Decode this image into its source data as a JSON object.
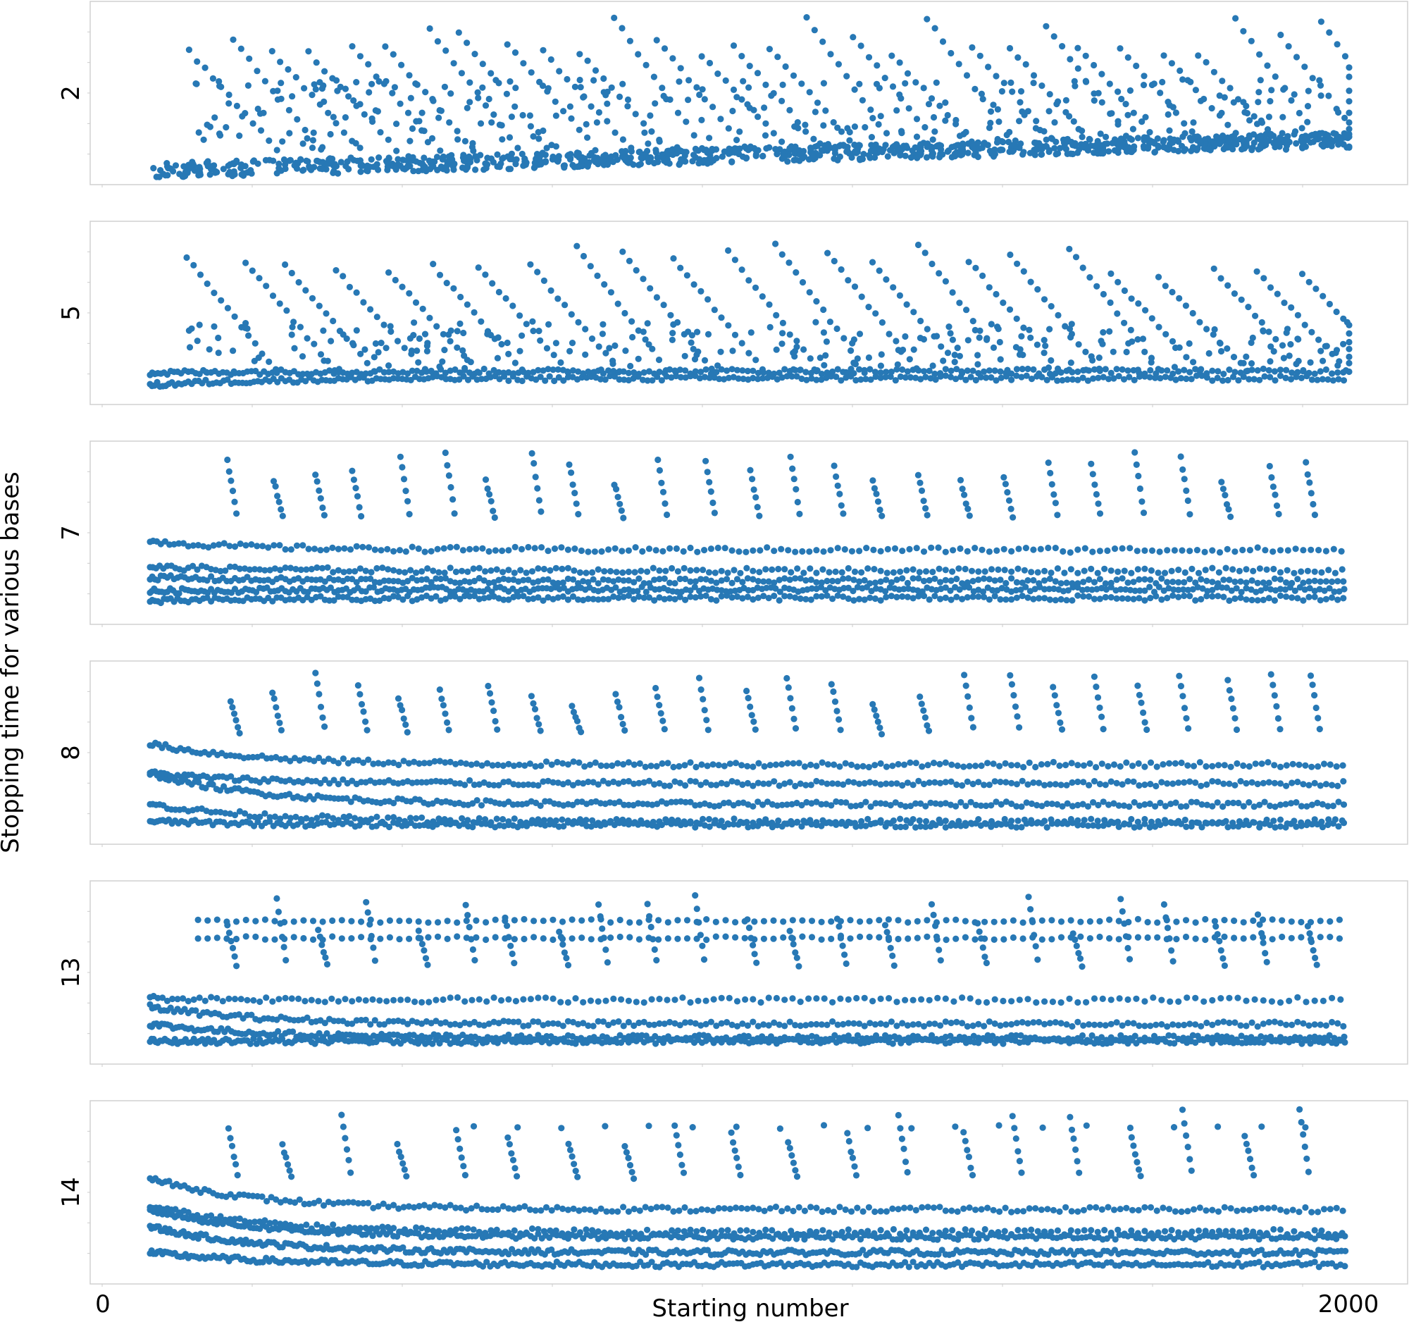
{
  "figure": {
    "ylabel": "Stopping time for various bases",
    "xlabel": "Starting number",
    "x_tick_labels": [
      "0",
      "2000"
    ],
    "marker_color": "#2778b5"
  },
  "chart_data": [
    {
      "type": "scatter",
      "panel_label": "2",
      "xlim": [
        0,
        2000
      ],
      "bands": [
        {
          "type": "low_cluster",
          "y_start": 0.04,
          "y_end": 0.22,
          "spread": 0.09,
          "n": 900
        },
        {
          "type": "fan",
          "y_top": 0.95,
          "y_base": 0.54,
          "count": 30,
          "lines": 8,
          "n": 380
        },
        {
          "type": "mid_cluster",
          "y_center": 0.38,
          "spread": 0.2,
          "n": 260
        }
      ]
    },
    {
      "type": "scatter",
      "panel_label": "5",
      "xlim": [
        0,
        2000
      ],
      "bands": [
        {
          "type": "curve",
          "y_start": 0.08,
          "y_end": 0.12,
          "n": 260
        },
        {
          "type": "curve",
          "y_start": 0.15,
          "y_end": 0.16,
          "n": 240
        },
        {
          "type": "fan",
          "y_top": 0.96,
          "y_base": 0.5,
          "count": 24,
          "lines": 7,
          "n": 340
        },
        {
          "type": "mid_cluster",
          "y_center": 0.3,
          "spread": 0.15,
          "n": 220
        }
      ]
    },
    {
      "type": "scatter",
      "panel_label": "7",
      "xlim": [
        0,
        2000
      ],
      "bands": [
        {
          "type": "curve",
          "y_start": 0.1,
          "y_end": 0.12,
          "n": 240
        },
        {
          "type": "curve",
          "y_start": 0.16,
          "y_end": 0.17,
          "n": 280
        },
        {
          "type": "curve",
          "y_start": 0.24,
          "y_end": 0.22,
          "n": 240
        },
        {
          "type": "curve",
          "y_start": 0.3,
          "y_end": 0.28,
          "n": 200
        },
        {
          "type": "curve",
          "y_start": 0.45,
          "y_end": 0.4,
          "n": 180
        },
        {
          "type": "spikes",
          "y_top": 0.97,
          "y_base": 0.55,
          "count": 26,
          "n": 160
        }
      ]
    },
    {
      "type": "scatter",
      "panel_label": "8",
      "xlim": [
        0,
        2000
      ],
      "bands": [
        {
          "type": "curve",
          "y_start": 0.1,
          "y_end": 0.08,
          "n": 260
        },
        {
          "type": "curve",
          "y_start": 0.2,
          "y_end": 0.1,
          "n": 200
        },
        {
          "type": "curve",
          "y_start": 0.38,
          "y_end": 0.2,
          "n": 260
        },
        {
          "type": "curve",
          "y_start": 0.38,
          "y_end": 0.32,
          "n": 240
        },
        {
          "type": "curve",
          "y_start": 0.55,
          "y_end": 0.43,
          "n": 220
        },
        {
          "type": "spikes",
          "y_top": 0.97,
          "y_base": 0.58,
          "count": 26,
          "n": 180
        }
      ]
    },
    {
      "type": "scatter",
      "panel_label": "13",
      "xlim": [
        0,
        2000
      ],
      "bands": [
        {
          "type": "curve",
          "y_start": 0.1,
          "y_end": 0.1,
          "n": 320
        },
        {
          "type": "curve",
          "y_start": 0.2,
          "y_end": 0.12,
          "n": 280
        },
        {
          "type": "curve",
          "y_start": 0.3,
          "y_end": 0.2,
          "n": 240
        },
        {
          "type": "curve",
          "y_start": 0.35,
          "y_end": 0.34,
          "n": 160
        },
        {
          "type": "line",
          "y": 0.7,
          "x_start": 80,
          "n": 120
        },
        {
          "type": "line",
          "y": 0.8,
          "x_start": 80,
          "n": 120
        },
        {
          "type": "spikes",
          "y_top": 0.96,
          "y_base": 0.5,
          "count": 24,
          "n": 160
        }
      ]
    },
    {
      "type": "scatter",
      "panel_label": "14",
      "xlim": [
        0,
        2000
      ],
      "bands": [
        {
          "type": "curve",
          "y_start": 0.15,
          "y_end": 0.08,
          "n": 320
        },
        {
          "type": "curve",
          "y_start": 0.3,
          "y_end": 0.15,
          "n": 360
        },
        {
          "type": "curve",
          "y_start": 0.4,
          "y_end": 0.24,
          "n": 320
        },
        {
          "type": "curve",
          "y_start": 0.42,
          "y_end": 0.27,
          "n": 200
        },
        {
          "type": "curve",
          "y_start": 0.58,
          "y_end": 0.4,
          "n": 220
        },
        {
          "type": "line",
          "y": 0.88,
          "x_start": 540,
          "n": 20
        },
        {
          "type": "spikes",
          "y_top": 0.98,
          "y_base": 0.55,
          "count": 20,
          "n": 120
        }
      ]
    }
  ]
}
